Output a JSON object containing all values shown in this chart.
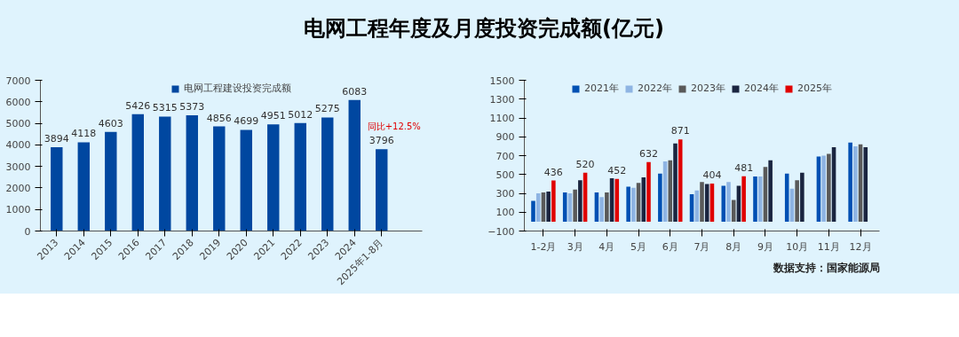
{
  "chart_data": [
    {
      "type": "bar",
      "title": "电网工程年度及月度投资完成额(亿元)",
      "categories": [
        "2013",
        "2014",
        "2015",
        "2016",
        "2017",
        "2018",
        "2019",
        "2020",
        "2021",
        "2022",
        "2023",
        "2024",
        "2025年1-8月"
      ],
      "series": [
        {
          "name": "电网工程建设投资完成额",
          "color": "#0047a0",
          "values": [
            3894,
            4118,
            4603,
            5426,
            5315,
            5373,
            4856,
            4699,
            4951,
            5012,
            5275,
            6083,
            3796
          ]
        }
      ],
      "ylim": [
        0,
        7000
      ],
      "yticks": [
        0,
        1000,
        2000,
        3000,
        4000,
        5000,
        6000,
        7000
      ],
      "data_labels": true,
      "legend": "top",
      "annotations": [
        {
          "text": "同比+12.5%",
          "x": "2025年1-8月",
          "y": 3796
        }
      ]
    },
    {
      "type": "bar",
      "categories": [
        "1-2月",
        "3月",
        "4月",
        "5月",
        "6月",
        "7月",
        "8月",
        "9月",
        "10月",
        "11月",
        "12月"
      ],
      "series": [
        {
          "name": "2021年",
          "color": "#0050b3",
          "values": [
            220,
            310,
            310,
            370,
            510,
            290,
            380,
            480,
            510,
            690,
            840
          ]
        },
        {
          "name": "2022年",
          "color": "#8eb4e3",
          "values": [
            300,
            300,
            260,
            360,
            640,
            330,
            420,
            480,
            350,
            700,
            800
          ]
        },
        {
          "name": "2023年",
          "color": "#595959",
          "values": [
            310,
            340,
            310,
            410,
            650,
            420,
            230,
            580,
            440,
            720,
            820
          ]
        },
        {
          "name": "2024年",
          "color": "#1a2540",
          "values": [
            320,
            440,
            460,
            470,
            830,
            400,
            380,
            650,
            520,
            790,
            790
          ]
        },
        {
          "name": "2025年",
          "color": "#e00000",
          "values": [
            436,
            520,
            452,
            632,
            871,
            404,
            481,
            null,
            null,
            null,
            null
          ],
          "value_labels": [
            "436",
            "520",
            "452",
            "632",
            "871",
            "404",
            "481",
            null,
            null,
            null,
            null
          ]
        }
      ],
      "ylim": [
        -100,
        1500
      ],
      "yticks": [
        -100,
        100,
        300,
        500,
        700,
        900,
        1100,
        1300,
        1500
      ],
      "legend": "top",
      "annotations": [
        "数据支持：国家能源局"
      ]
    }
  ]
}
